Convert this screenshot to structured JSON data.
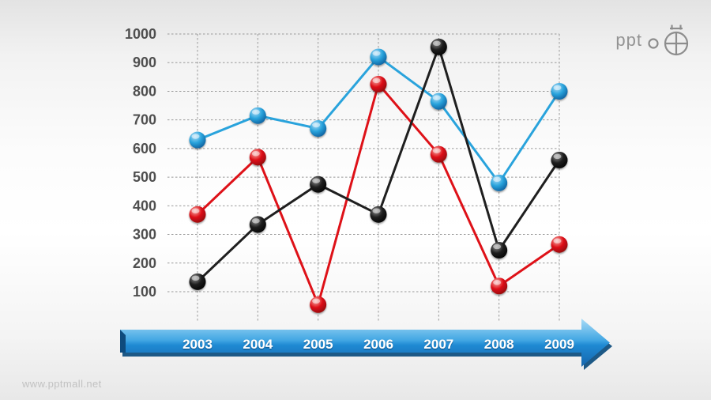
{
  "page": {
    "watermark": "www.pptmall.net"
  },
  "logo": {
    "text": "ppt",
    "icon": "globe-crosshair",
    "color": "#8d8d8d"
  },
  "chart_data": {
    "type": "line",
    "title": "",
    "xlabel": "",
    "ylabel": "",
    "categories": [
      "2003",
      "2004",
      "2005",
      "2006",
      "2007",
      "2008",
      "2009"
    ],
    "series": [
      {
        "name": "blue-series",
        "line_color": "#29A3DC",
        "dot_light": "#AEDCF6",
        "dot_dark": "#0C5C9B",
        "values": [
          630,
          715,
          670,
          920,
          765,
          480,
          800
        ]
      },
      {
        "name": "red-series",
        "line_color": "#DE1118",
        "dot_light": "#F6AFAB",
        "dot_dark": "#8E0A0D",
        "values": [
          370,
          570,
          55,
          825,
          580,
          120,
          265
        ]
      },
      {
        "name": "black-series",
        "line_color": "#1F1F1F",
        "dot_light": "#909090",
        "dot_dark": "#000000",
        "values": [
          135,
          335,
          475,
          370,
          955,
          245,
          560
        ]
      }
    ],
    "yticks": [
      1000,
      900,
      800,
      700,
      600,
      500,
      400,
      300,
      200,
      100
    ],
    "ylim": [
      0,
      1000
    ],
    "grid": true,
    "gridline_color": "#999999",
    "tick_label_color": "#4f4f4f",
    "legend": "none"
  },
  "timeline_arrow": {
    "labels_color": "#FFFFFF",
    "gradient_top": "#A9DCF7",
    "gradient_mid": "#42A6E3",
    "gradient_mid2": "#1F8AD3",
    "gradient_bottom": "#1565AC",
    "shadow_color": "#11507F",
    "bevel_color": "#0E4B7D"
  }
}
